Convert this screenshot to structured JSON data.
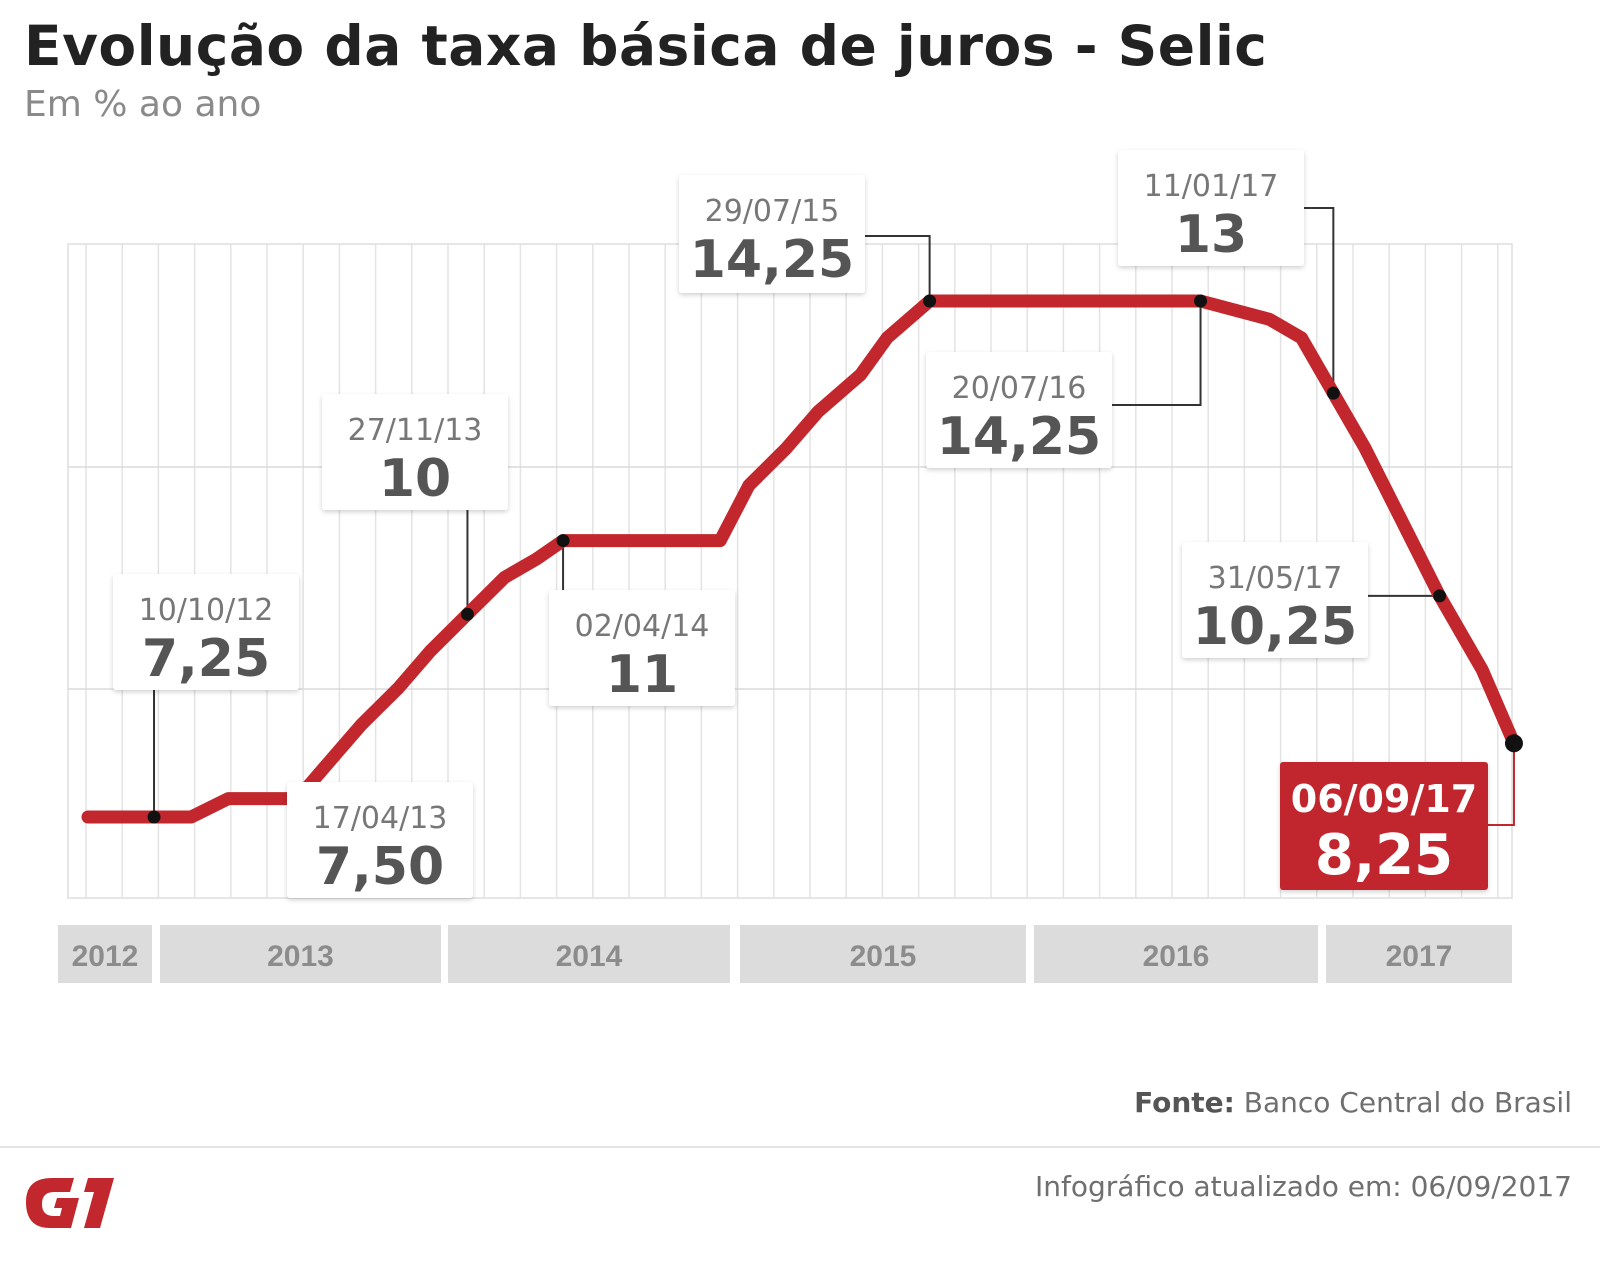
{
  "header": {
    "title": "Evolução da taxa básica de juros - Selic",
    "subtitle": "Em % ao ano"
  },
  "chart_data": {
    "type": "line",
    "title": "Evolução da taxa básica de juros - Selic",
    "subtitle": "Em % ao ano",
    "ylim": [
      7,
      16
    ],
    "xlim": [
      "2012-07-15",
      "2017-09-10"
    ],
    "grid": true,
    "series": [
      {
        "color": "#c1272d",
        "points": [
          {
            "x": "2012-07-15",
            "y": 7.25
          },
          {
            "x": "2012-10-10",
            "y": 7.25
          },
          {
            "x": "2012-11-28",
            "y": 7.25
          },
          {
            "x": "2013-01-16",
            "y": 7.5
          },
          {
            "x": "2013-04-17",
            "y": 7.5
          },
          {
            "x": "2013-05-29",
            "y": 8.0
          },
          {
            "x": "2013-07-10",
            "y": 8.5
          },
          {
            "x": "2013-08-28",
            "y": 9.0
          },
          {
            "x": "2013-10-09",
            "y": 9.5
          },
          {
            "x": "2013-11-27",
            "y": 10.0
          },
          {
            "x": "2014-01-15",
            "y": 10.5
          },
          {
            "x": "2014-02-26",
            "y": 10.75
          },
          {
            "x": "2014-04-02",
            "y": 11.0
          },
          {
            "x": "2014-10-26",
            "y": 11.0
          },
          {
            "x": "2014-12-03",
            "y": 11.75
          },
          {
            "x": "2015-01-21",
            "y": 12.25
          },
          {
            "x": "2015-03-04",
            "y": 12.75
          },
          {
            "x": "2015-04-29",
            "y": 13.25
          },
          {
            "x": "2015-06-03",
            "y": 13.75
          },
          {
            "x": "2015-07-29",
            "y": 14.25
          },
          {
            "x": "2016-07-20",
            "y": 14.25
          },
          {
            "x": "2016-10-19",
            "y": 14.0
          },
          {
            "x": "2016-11-30",
            "y": 13.75
          },
          {
            "x": "2017-01-11",
            "y": 13.0
          },
          {
            "x": "2017-02-22",
            "y": 12.25
          },
          {
            "x": "2017-04-12",
            "y": 11.25
          },
          {
            "x": "2017-05-31",
            "y": 10.25
          },
          {
            "x": "2017-07-26",
            "y": 9.25
          },
          {
            "x": "2017-09-06",
            "y": 8.25
          }
        ]
      }
    ],
    "year_labels": [
      "2012",
      "2013",
      "2014",
      "2015",
      "2016",
      "2017"
    ],
    "annotations": [
      {
        "date": "10/10/12",
        "value": "7,25",
        "x": "2012-10-10",
        "y": 7.25
      },
      {
        "date": "17/04/13",
        "value": "7,50",
        "x": "2013-04-17",
        "y": 7.5
      },
      {
        "date": "27/11/13",
        "value": "10",
        "x": "2013-11-27",
        "y": 10.0
      },
      {
        "date": "02/04/14",
        "value": "11",
        "x": "2014-04-02",
        "y": 11.0
      },
      {
        "date": "29/07/15",
        "value": "14,25",
        "x": "2015-07-29",
        "y": 14.25
      },
      {
        "date": "20/07/16",
        "value": "14,25",
        "x": "2016-07-20",
        "y": 14.25
      },
      {
        "date": "11/01/17",
        "value": "13",
        "x": "2017-01-11",
        "y": 13.0
      },
      {
        "date": "31/05/17",
        "value": "10,25",
        "x": "2017-05-31",
        "y": 10.25
      },
      {
        "date": "06/09/17",
        "value": "8,25",
        "x": "2017-09-06",
        "y": 8.25,
        "highlight": true
      }
    ]
  },
  "footer": {
    "source_label": "Fonte:",
    "source_text": "Banco Central do Brasil",
    "updated": "Infográfico atualizado em: 06/09/2017",
    "logo_text": "G1"
  }
}
